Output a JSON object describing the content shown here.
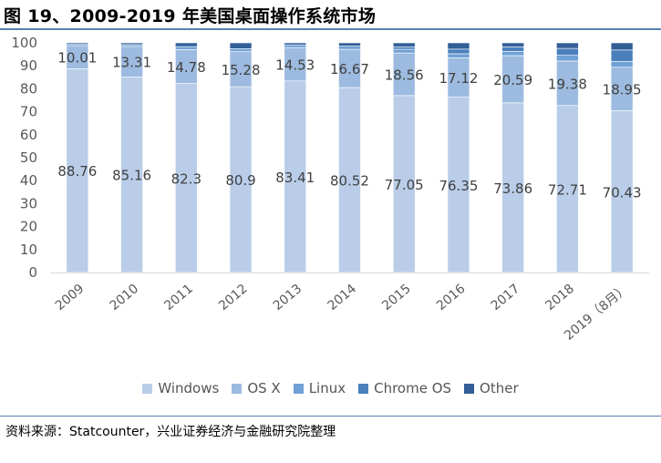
{
  "header": {
    "title": "图 19、2009-2019 年美国桌面操作系统市场"
  },
  "footer": {
    "source": "资料来源：Statcounter，兴业证券经济与金融研究院整理"
  },
  "colors": {
    "Windows": "#b9cde9",
    "OS X": "#9dbbe0",
    "Linux": "#6fa1d6",
    "Chrome OS": "#4b80bd",
    "Other": "#335f97"
  },
  "chart_data": {
    "type": "bar",
    "stacked": true,
    "categories": [
      "2009",
      "2010",
      "2011",
      "2012",
      "2013",
      "2014",
      "2015",
      "2016",
      "2017",
      "2018",
      "2019（8月）"
    ],
    "series": [
      {
        "name": "Windows",
        "values": [
          88.76,
          85.16,
          82.3,
          80.9,
          83.41,
          80.52,
          77.05,
          76.35,
          73.86,
          72.71,
          70.43
        ]
      },
      {
        "name": "OS X",
        "values": [
          10.01,
          13.31,
          14.78,
          15.28,
          14.53,
          16.67,
          18.56,
          17.12,
          20.59,
          19.38,
          18.95
        ]
      },
      {
        "name": "Linux",
        "values": [
          0.6,
          0.8,
          1.3,
          1.3,
          1.2,
          1.4,
          1.6,
          1.8,
          1.8,
          2.5,
          2.5
        ]
      },
      {
        "name": "Chrome OS",
        "values": [
          0,
          0,
          0,
          0,
          0,
          0,
          1.0,
          2.0,
          2.0,
          3.0,
          5.0
        ]
      },
      {
        "name": "Other",
        "values": [
          0.63,
          0.73,
          1.62,
          2.52,
          0.86,
          1.41,
          1.79,
          2.73,
          1.75,
          2.41,
          3.12
        ]
      }
    ],
    "data_labels": {
      "Windows": [
        "88.76",
        "85.16",
        "82.3",
        "80.9",
        "83.41",
        "80.52",
        "77.05",
        "76.35",
        "73.86",
        "72.71",
        "70.43"
      ],
      "OS X": [
        "10.01",
        "13.31",
        "14.78",
        "15.28",
        "14.53",
        "16.67",
        "18.56",
        "17.12",
        "20.59",
        "19.38",
        "18.95"
      ]
    },
    "y_ticks": [
      "0",
      "10",
      "20",
      "30",
      "40",
      "50",
      "60",
      "70",
      "80",
      "90",
      "100"
    ],
    "ylim": [
      0,
      100
    ],
    "grid": false,
    "legend": "bottom",
    "title": "",
    "xlabel": "",
    "ylabel": ""
  }
}
